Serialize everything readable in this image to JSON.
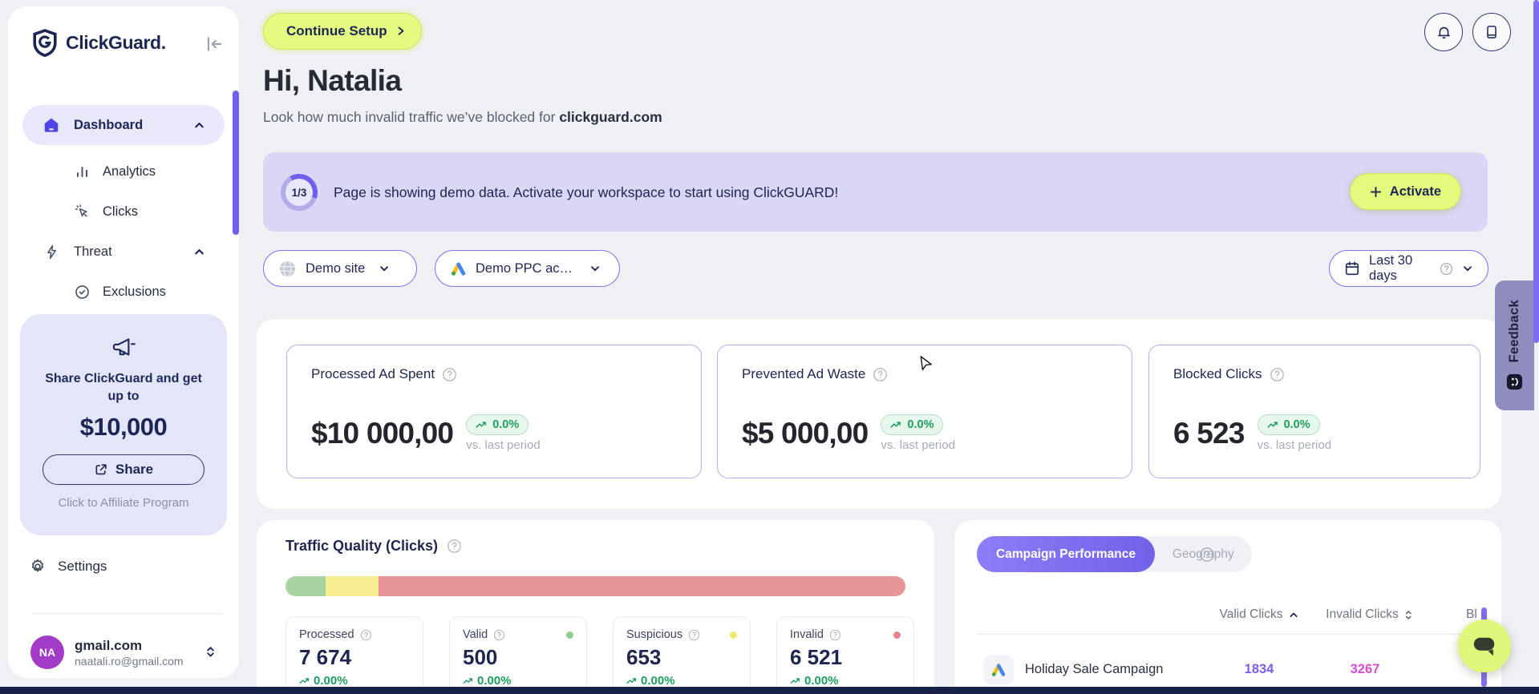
{
  "sidebar": {
    "logo_text": "ClickGuard.",
    "nav": [
      {
        "label": "Dashboard"
      },
      {
        "label": "Analytics"
      },
      {
        "label": "Clicks"
      },
      {
        "label": "Threat"
      },
      {
        "label": "Exclusions"
      }
    ],
    "promo": {
      "line1": "Share ClickGuard and get up to",
      "amount": "$10,000",
      "share_label": "Share",
      "footer": "Click to Affiliate Program"
    },
    "settings_label": "Settings",
    "user": {
      "initials": "NA",
      "name": "gmail.com",
      "email": "naatali.ro@gmail.com"
    }
  },
  "header": {
    "continue_setup": "Continue Setup",
    "greeting": "Hi, Natalia",
    "subtitle_prefix": "Look how much invalid traffic we’ve blocked for ",
    "subtitle_domain": "clickguard.com"
  },
  "banner": {
    "step": "1/3",
    "message": "Page is showing demo data. Activate your workspace to start using ClickGUARD!",
    "activate_label": "Activate"
  },
  "filters": {
    "site": "Demo site",
    "ppc": "Demo PPC ac…",
    "range": "Last 30 days"
  },
  "stats": [
    {
      "label": "Processed Ad Spent",
      "value": "$10 000,00",
      "delta": "0.0%",
      "period": "vs. last period"
    },
    {
      "label": "Prevented Ad Waste",
      "value": "$5 000,00",
      "delta": "0.0%",
      "period": "vs. last period"
    },
    {
      "label": "Blocked Clicks",
      "value": "6 523",
      "delta": "0.0%",
      "period": "vs. last period"
    }
  ],
  "traffic_quality": {
    "title": "Traffic Quality (Clicks)",
    "bar": [
      {
        "name": "valid",
        "pct": 6.5,
        "color": "#a9d3a3"
      },
      {
        "name": "suspicious",
        "pct": 8.5,
        "color": "#f6ee90"
      },
      {
        "name": "invalid",
        "pct": 85,
        "color": "#e69598"
      }
    ],
    "metrics": [
      {
        "label": "Processed",
        "value": "7 674",
        "delta": "0.00%"
      },
      {
        "label": "Valid",
        "value": "500",
        "delta": "0.00%",
        "dot": "#90cf8e"
      },
      {
        "label": "Suspicious",
        "value": "653",
        "delta": "0.00%",
        "dot": "#f2e76b"
      },
      {
        "label": "Invalid",
        "value": "6 521",
        "delta": "0.00%",
        "dot": "#e8808d"
      }
    ]
  },
  "campaigns": {
    "tabs": [
      "Campaign Performance",
      "Geography"
    ],
    "active_tab": "Campaign Performance",
    "columns": [
      "Valid Clicks",
      "Invalid Clicks",
      "Bl"
    ],
    "rows": [
      {
        "name": "Holiday Sale Campaign",
        "valid": "1834",
        "invalid": "3267"
      }
    ]
  },
  "feedback_label": "Feedback",
  "colors": {
    "accent_purple": "#6e60f1",
    "lime": "#e3fa7d",
    "banner_bg": "#d9d6f6",
    "delta_green": "#1f9e5f",
    "valid_clicks": "#7c5ff0",
    "invalid_clicks": "#d44fd4",
    "avatar": "#a23bc6"
  }
}
